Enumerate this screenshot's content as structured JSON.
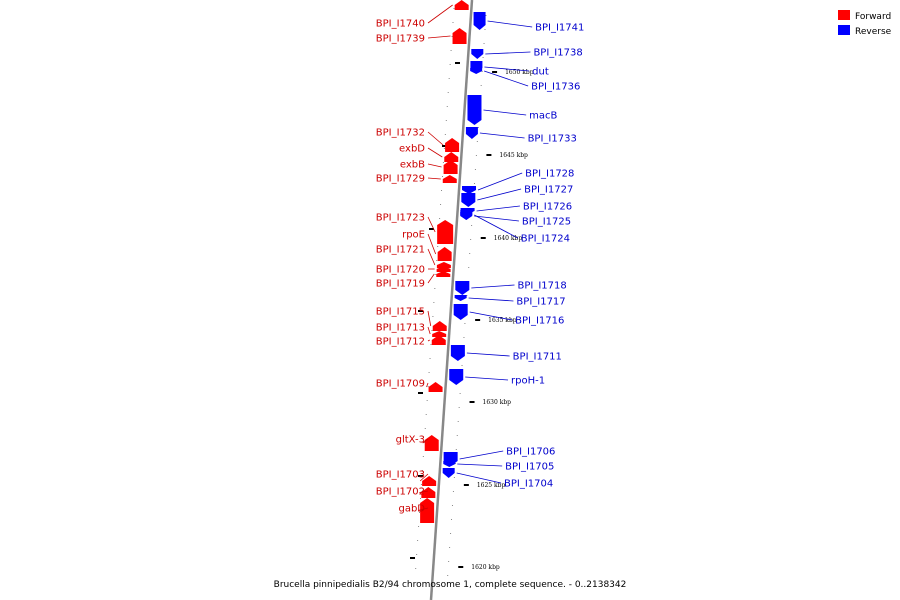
{
  "caption": "Brucella pinnipedialis B2/94 chromosome 1, complete sequence. - 0..2138342",
  "legend": [
    {
      "label": "Forward",
      "color": "#ff0000"
    },
    {
      "label": "Reverse",
      "color": "#0000ff"
    }
  ],
  "colors": {
    "forward": "#ff0000",
    "reverse": "#0000ff",
    "forward_text": "#cc0000",
    "reverse_text": "#0000cc",
    "axis": "#888888"
  },
  "scale_labels": [
    "1650 kbp",
    "1645 kbp",
    "1640 kbp",
    "1635 kbp",
    "1630 kbp",
    "1625 kbp",
    "1620 kbp"
  ],
  "forward_genes": [
    "BPI_I1740",
    "BPI_I1739",
    "BPI_I1732",
    "exbD",
    "exbB",
    "BPI_I1729",
    "BPI_I1723",
    "rpoE",
    "BPI_I1721",
    "BPI_I1720",
    "BPI_I1719",
    "BPI_I1715",
    "BPI_I1713",
    "BPI_I1712",
    "BPI_I1709",
    "gltX-3",
    "BPI_I1703",
    "BPI_I1702",
    "gabD"
  ],
  "reverse_genes": [
    "BPI_I1741",
    "BPI_I1738",
    "dut",
    "BPI_I1736",
    "macB",
    "BPI_I1733",
    "BPI_I1728",
    "BPI_I1727",
    "BPI_I1726",
    "BPI_I1725",
    "BPI_I1724",
    "BPI_I1718",
    "BPI_I1717",
    "BPI_I1716",
    "BPI_I1711",
    "rpoH-1",
    "BPI_I1706",
    "BPI_I1705",
    "BPI_I1704"
  ]
}
